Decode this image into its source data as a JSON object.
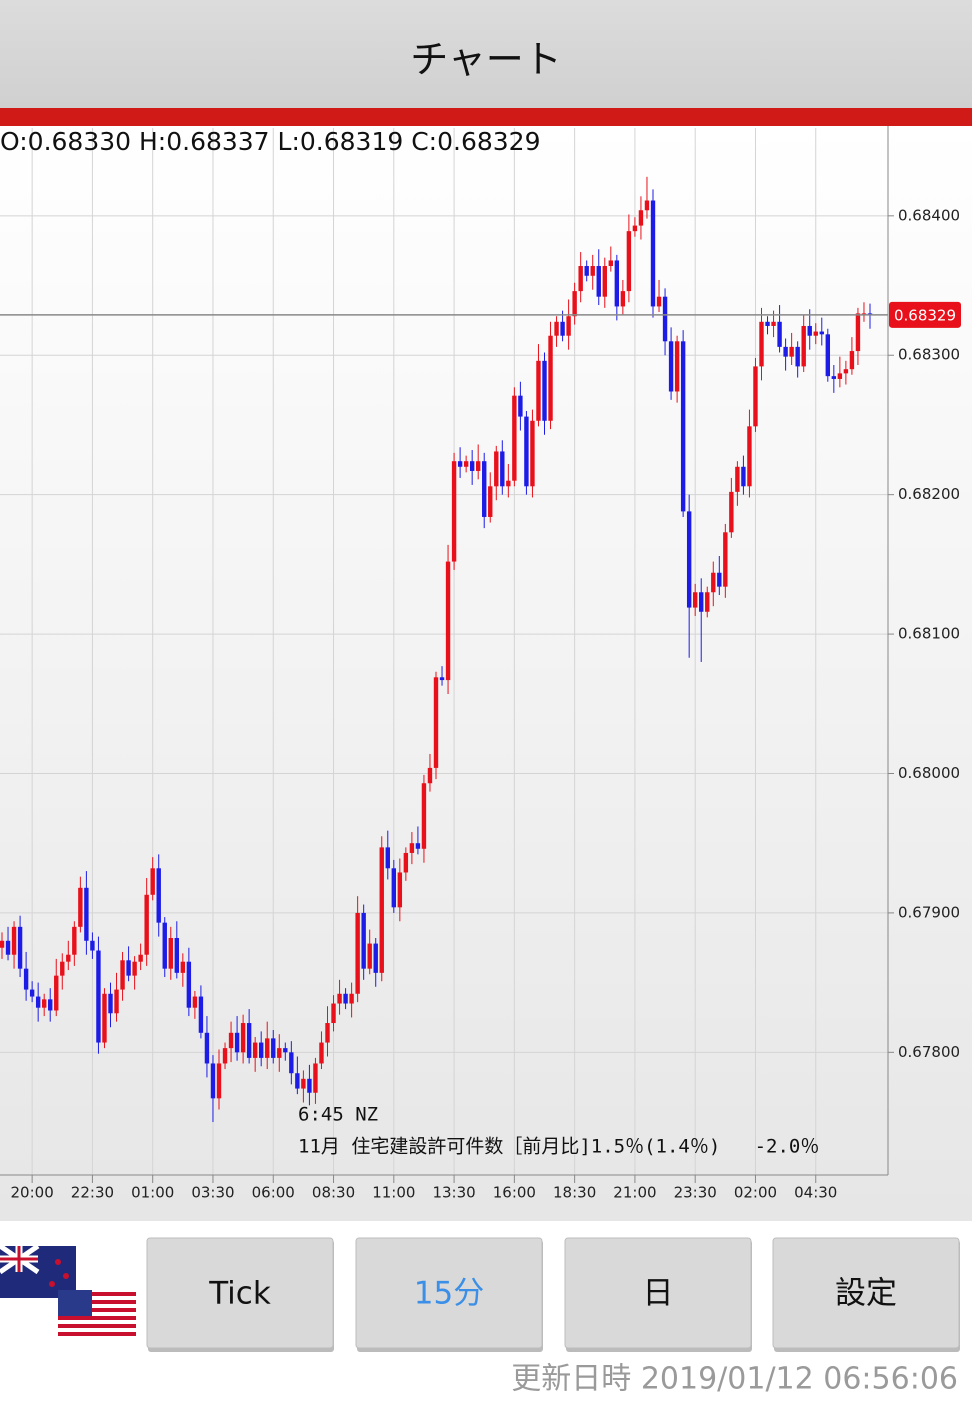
{
  "header": {
    "title": "チャート"
  },
  "chart_data": {
    "type": "candlestick",
    "ohlc_header": "O:0.68330 H:0.68337 L:0.68319 C:0.68329",
    "up_color": "#e8101a",
    "down_color": "#1c1ce6",
    "categories": [
      null,
      null,
      null,
      null,
      null,
      "20:00",
      null,
      null,
      null,
      null,
      null,
      null,
      null,
      null,
      null,
      "22:30",
      null,
      null,
      null,
      null,
      null,
      null,
      null,
      null,
      null,
      "01:00",
      null,
      null,
      null,
      null,
      null,
      null,
      null,
      null,
      null,
      "03:30",
      null,
      null,
      null,
      null,
      null,
      null,
      null,
      null,
      null,
      "06:00",
      null,
      null,
      null,
      null,
      null,
      null,
      null,
      null,
      null,
      "08:30",
      null,
      null,
      null,
      null,
      null,
      null,
      null,
      null,
      null,
      "11:00",
      null,
      null,
      null,
      null,
      null,
      null,
      null,
      null,
      null,
      "13:30",
      null,
      null,
      null,
      null,
      null,
      null,
      null,
      null,
      null,
      "16:00",
      null,
      null,
      null,
      null,
      null,
      null,
      null,
      null,
      null,
      "18:30",
      null,
      null,
      null,
      null,
      null,
      null,
      null,
      null,
      null,
      "21:00",
      null,
      null,
      null,
      null,
      null,
      null,
      null,
      null,
      null,
      "23:30",
      null,
      null,
      null,
      null,
      null,
      null,
      null,
      null,
      null,
      "02:00",
      null,
      null,
      null,
      null,
      null,
      null,
      null,
      null,
      null,
      "04:30",
      null,
      null,
      null,
      null,
      null,
      null,
      null,
      null,
      null
    ],
    "open": [
      0.67875,
      0.6788,
      0.6787,
      0.6789,
      0.6786,
      0.67845,
      0.6784,
      0.67832,
      0.67838,
      0.6783,
      0.67855,
      0.67865,
      0.6787,
      0.6789,
      0.67918,
      0.6788,
      0.67873,
      0.67807,
      0.67842,
      0.67828,
      0.67845,
      0.67866,
      0.67855,
      0.67865,
      0.6787,
      0.67913,
      0.67932,
      0.67893,
      0.6786,
      0.67882,
      0.67857,
      0.67865,
      0.67832,
      0.6784,
      0.67814,
      0.67792,
      0.67767,
      0.67792,
      0.67803,
      0.67814,
      0.678,
      0.67821,
      0.67796,
      0.67807,
      0.67796,
      0.6781,
      0.67796,
      0.67803,
      0.678,
      0.67785,
      0.67774,
      0.67781,
      0.67771,
      0.67792,
      0.67807,
      0.67821,
      0.67835,
      0.67842,
      0.67835,
      0.67842,
      0.679,
      0.6786,
      0.67878,
      0.67857,
      0.67947,
      0.67932,
      0.67904,
      0.67929,
      0.67943,
      0.6795,
      0.67946,
      0.67993,
      0.68004,
      0.68069,
      0.68067,
      0.68152,
      0.68224,
      0.6822,
      0.68224,
      0.68217,
      0.68224,
      0.68184,
      0.68206,
      0.68231,
      0.68206,
      0.6821,
      0.68271,
      0.68256,
      0.68206,
      0.68253,
      0.68296,
      0.68253,
      0.68314,
      0.68324,
      0.68314,
      0.68328,
      0.68346,
      0.68364,
      0.68357,
      0.68364,
      0.68342,
      0.68364,
      0.68368,
      0.68335,
      0.68346,
      0.68389,
      0.68393,
      0.68404,
      0.68411,
      0.68335,
      0.68342,
      0.6831,
      0.68274,
      0.6831,
      0.68188,
      0.68119,
      0.6813,
      0.68116,
      0.6813,
      0.68144,
      0.68134,
      0.68173,
      0.68202,
      0.6822,
      0.68206,
      0.68249,
      0.68292,
      0.68324,
      0.68321,
      0.68324,
      0.68306,
      0.68299,
      0.68306,
      0.68292,
      0.68321,
      0.68314,
      0.68317,
      0.68315,
      0.68285,
      0.68283,
      0.68287,
      0.6829,
      0.68303,
      0.6833,
      0.6833
    ],
    "high": [
      0.67886,
      0.6789,
      0.67894,
      0.67898,
      0.67872,
      0.67851,
      0.6785,
      0.67842,
      0.67846,
      0.67867,
      0.67871,
      0.6788,
      0.67894,
      0.67926,
      0.6793,
      0.67886,
      0.67883,
      0.67846,
      0.6785,
      0.67857,
      0.67872,
      0.67876,
      0.67869,
      0.67878,
      0.67925,
      0.6794,
      0.67942,
      0.67897,
      0.6789,
      0.67894,
      0.67871,
      0.67875,
      0.67844,
      0.67848,
      0.67826,
      0.67798,
      0.67802,
      0.67807,
      0.67822,
      0.67826,
      0.67827,
      0.67831,
      0.67811,
      0.67815,
      0.67822,
      0.67816,
      0.67813,
      0.67807,
      0.67808,
      0.67797,
      0.67787,
      0.67791,
      0.67796,
      0.67815,
      0.67833,
      0.67841,
      0.67852,
      0.67846,
      0.6785,
      0.67912,
      0.67906,
      0.67888,
      0.67882,
      0.67955,
      0.67959,
      0.67938,
      0.67939,
      0.67947,
      0.67958,
      0.67962,
      0.67999,
      0.68014,
      0.68073,
      0.68077,
      0.68164,
      0.6823,
      0.68234,
      0.68228,
      0.68232,
      0.68236,
      0.6823,
      0.68216,
      0.68235,
      0.68239,
      0.68222,
      0.68277,
      0.68281,
      0.6826,
      0.68261,
      0.68308,
      0.68302,
      0.68324,
      0.68328,
      0.68332,
      0.6834,
      0.68352,
      0.68374,
      0.68368,
      0.68372,
      0.68376,
      0.6837,
      0.68378,
      0.68372,
      0.68354,
      0.68401,
      0.68399,
      0.68414,
      0.68428,
      0.68419,
      0.68354,
      0.68348,
      0.6832,
      0.68314,
      0.68318,
      0.682,
      0.68136,
      0.6814,
      0.68134,
      0.68152,
      0.68156,
      0.68179,
      0.68212,
      0.68224,
      0.68228,
      0.68261,
      0.68298,
      0.68334,
      0.68328,
      0.68332,
      0.68336,
      0.68312,
      0.68316,
      0.6831,
      0.68329,
      0.68333,
      0.68323,
      0.68327,
      0.68319,
      0.68293,
      0.68299,
      0.68296,
      0.68313,
      0.68334,
      0.68338,
      0.68337
    ],
    "low": [
      0.67867,
      0.67866,
      0.6786,
      0.67854,
      0.67837,
      0.67836,
      0.67822,
      0.67826,
      0.67822,
      0.67826,
      0.67845,
      0.67859,
      0.67862,
      0.67886,
      0.6787,
      0.67867,
      0.67799,
      0.67803,
      0.67818,
      0.67822,
      0.67837,
      0.67851,
      0.67845,
      0.67859,
      0.67862,
      0.67909,
      0.67883,
      0.67854,
      0.67852,
      0.67853,
      0.67847,
      0.67826,
      0.67824,
      0.6781,
      0.67782,
      0.6775,
      0.67759,
      0.67788,
      0.67793,
      0.67794,
      0.67792,
      0.67792,
      0.67786,
      0.6779,
      0.67788,
      0.67792,
      0.67786,
      0.67794,
      0.67777,
      0.6777,
      0.67764,
      0.67762,
      0.67763,
      0.67788,
      0.67797,
      0.67815,
      0.67827,
      0.67831,
      0.67825,
      0.67836,
      0.67852,
      0.67856,
      0.67847,
      0.67851,
      0.67924,
      0.679,
      0.67894,
      0.67923,
      0.67935,
      0.67942,
      0.67936,
      0.67987,
      0.67996,
      0.68063,
      0.68057,
      0.68146,
      0.68212,
      0.68216,
      0.68207,
      0.68211,
      0.68176,
      0.6818,
      0.68196,
      0.682,
      0.68198,
      0.68206,
      0.68246,
      0.682,
      0.68198,
      0.68249,
      0.68243,
      0.68247,
      0.68306,
      0.6831,
      0.68304,
      0.68322,
      0.68338,
      0.68353,
      0.68347,
      0.68336,
      0.68334,
      0.6836,
      0.68325,
      0.68329,
      0.68338,
      0.68385,
      0.68383,
      0.68398,
      0.68327,
      0.68331,
      0.683,
      0.68268,
      0.68266,
      0.68184,
      0.68083,
      0.68113,
      0.6808,
      0.68112,
      0.6812,
      0.68128,
      0.68126,
      0.68169,
      0.68192,
      0.682,
      0.68198,
      0.68245,
      0.68282,
      0.68315,
      0.68313,
      0.68302,
      0.68289,
      0.68293,
      0.68284,
      0.68288,
      0.68304,
      0.68308,
      0.68307,
      0.68281,
      0.68273,
      0.68277,
      0.68279,
      0.68286,
      0.68293,
      0.68324,
      0.68319
    ],
    "close": [
      0.6788,
      0.6787,
      0.6789,
      0.6786,
      0.67845,
      0.6784,
      0.67832,
      0.67838,
      0.6783,
      0.67855,
      0.67865,
      0.6787,
      0.6789,
      0.67918,
      0.6788,
      0.67873,
      0.67807,
      0.67842,
      0.67828,
      0.67845,
      0.67866,
      0.67855,
      0.67865,
      0.6787,
      0.67913,
      0.67932,
      0.67893,
      0.6786,
      0.67882,
      0.67857,
      0.67865,
      0.67832,
      0.6784,
      0.67814,
      0.67792,
      0.67767,
      0.67792,
      0.67803,
      0.67814,
      0.678,
      0.67821,
      0.67796,
      0.67807,
      0.67796,
      0.6781,
      0.67796,
      0.67803,
      0.678,
      0.67785,
      0.67774,
      0.67781,
      0.67771,
      0.67792,
      0.67807,
      0.67821,
      0.67835,
      0.67842,
      0.67835,
      0.67842,
      0.679,
      0.6786,
      0.67878,
      0.67857,
      0.67947,
      0.67932,
      0.67904,
      0.67929,
      0.67943,
      0.6795,
      0.67946,
      0.67993,
      0.68004,
      0.68069,
      0.68067,
      0.68152,
      0.68224,
      0.6822,
      0.68224,
      0.68217,
      0.68224,
      0.68184,
      0.68206,
      0.68231,
      0.68206,
      0.6821,
      0.68271,
      0.68256,
      0.68206,
      0.68253,
      0.68296,
      0.68253,
      0.68314,
      0.68324,
      0.68314,
      0.68328,
      0.68346,
      0.68364,
      0.68357,
      0.68364,
      0.68342,
      0.68364,
      0.68368,
      0.68335,
      0.68346,
      0.68389,
      0.68393,
      0.68404,
      0.68411,
      0.68335,
      0.68342,
      0.6831,
      0.68274,
      0.6831,
      0.68188,
      0.68119,
      0.6813,
      0.68116,
      0.6813,
      0.68144,
      0.68134,
      0.68173,
      0.68202,
      0.6822,
      0.68206,
      0.68249,
      0.68292,
      0.68324,
      0.68321,
      0.68324,
      0.68306,
      0.68299,
      0.68306,
      0.68292,
      0.68321,
      0.68314,
      0.68317,
      0.68315,
      0.68285,
      0.68283,
      0.68287,
      0.6829,
      0.68303,
      0.6833,
      0.6833,
      0.68329
    ],
    "ylim": [
      0.67712,
      0.68463
    ],
    "yticks": [
      {
        "value": 0.684,
        "label": "0.68400"
      },
      {
        "value": 0.683,
        "label": "0.68300"
      },
      {
        "value": 0.682,
        "label": "0.68200"
      },
      {
        "value": 0.681,
        "label": "0.68100"
      },
      {
        "value": 0.68,
        "label": "0.68000"
      },
      {
        "value": 0.679,
        "label": "0.67900"
      },
      {
        "value": 0.678,
        "label": "0.67800"
      }
    ],
    "grid": true,
    "last_price": 0.68329,
    "annotation": {
      "time": "6:45 NZ",
      "text": "11月 住宅建設許可件数［前月比]1.5％(1.4％)   -2.0％"
    }
  },
  "buttons": [
    "Tick",
    "15分",
    "日",
    "設定"
  ],
  "active_button": 1,
  "footer": "更新日時 2019/01/12 06:56:06"
}
